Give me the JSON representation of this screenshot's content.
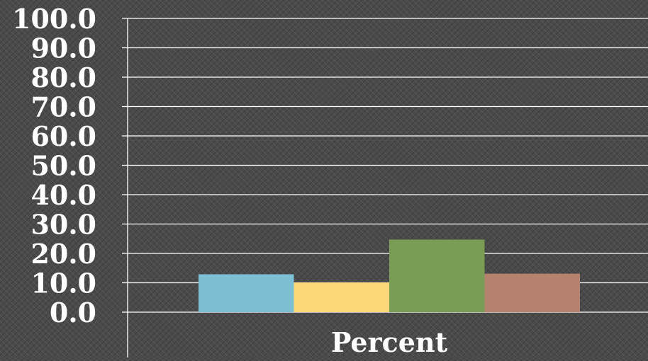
{
  "chart_data": {
    "type": "bar",
    "categories": [
      "Percent"
    ],
    "series": [
      {
        "values": [
          12.9
        ],
        "color": "#7dbfd3"
      },
      {
        "values": [
          10.1
        ],
        "color": "#fcd87a"
      },
      {
        "values": [
          24.7
        ],
        "color": "#799d55"
      },
      {
        "values": [
          13.1
        ],
        "color": "#b58270"
      }
    ],
    "ylim": [
      0,
      100
    ],
    "yticks": [
      "0.0",
      "10.0",
      "20.0",
      "30.0",
      "40.0",
      "50.0",
      "60.0",
      "70.0",
      "80.0",
      "90.0",
      "100.0"
    ],
    "grid": true,
    "legend": "none",
    "title": "",
    "xlabel": "",
    "ylabel": ""
  }
}
